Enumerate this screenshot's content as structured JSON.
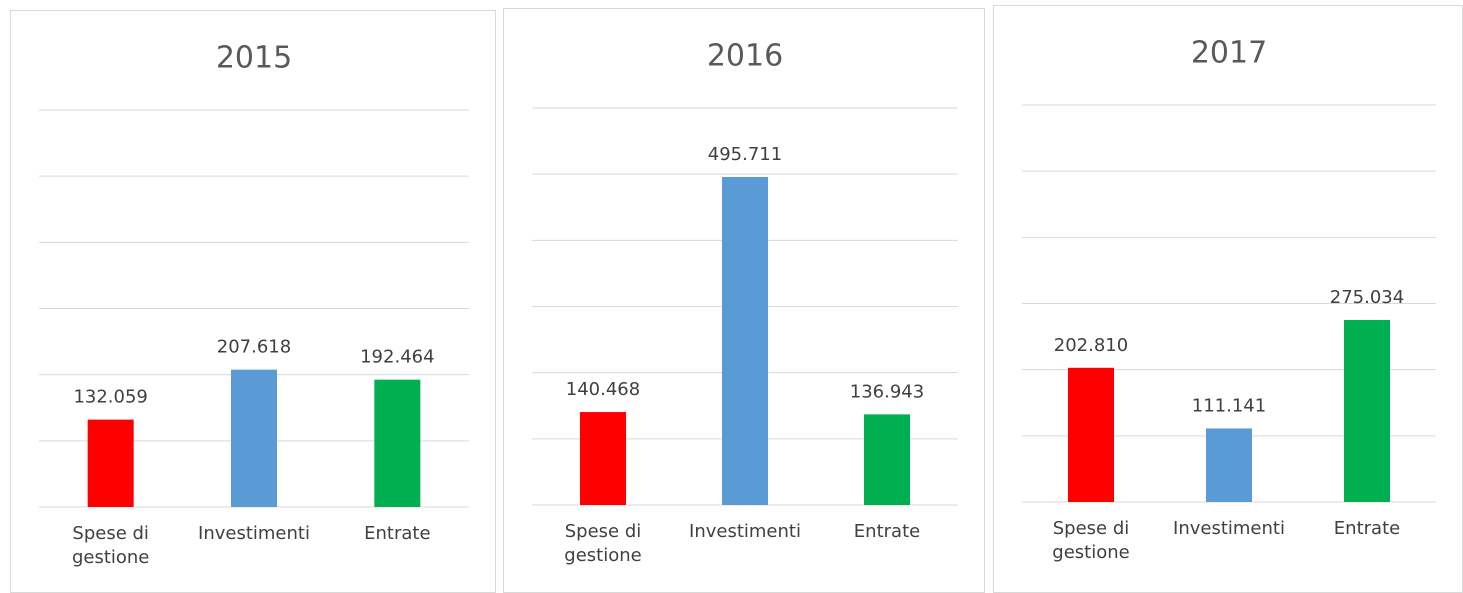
{
  "chart_data": [
    {
      "type": "bar",
      "title": "2015",
      "categories": [
        "Spese di gestione",
        "Investimenti",
        "Entrate"
      ],
      "values": [
        132059,
        207618,
        192464
      ],
      "value_labels": [
        "132.059",
        "207.618",
        "192.464"
      ],
      "colors": [
        "#ff0000",
        "#5b9bd5",
        "#00b050"
      ],
      "ylim": [
        0,
        600000
      ],
      "yticks": [
        0,
        100000,
        200000,
        300000,
        400000,
        500000,
        600000
      ],
      "grid": true
    },
    {
      "type": "bar",
      "title": "2016",
      "categories": [
        "Spese di gestione",
        "Investimenti",
        "Entrate"
      ],
      "values": [
        140468,
        495711,
        136943
      ],
      "value_labels": [
        "140.468",
        "495.711",
        "136.943"
      ],
      "colors": [
        "#ff0000",
        "#5b9bd5",
        "#00b050"
      ],
      "ylim": [
        0,
        600000
      ],
      "yticks": [
        0,
        100000,
        200000,
        300000,
        400000,
        500000,
        600000
      ],
      "grid": true
    },
    {
      "type": "bar",
      "title": "2017",
      "categories": [
        "Spese di gestione",
        "Investimenti",
        "Entrate"
      ],
      "values": [
        202810,
        111141,
        275034
      ],
      "value_labels": [
        "202.810",
        "111.141",
        "275.034"
      ],
      "colors": [
        "#ff0000",
        "#5b9bd5",
        "#00b050"
      ],
      "ylim": [
        0,
        600000
      ],
      "yticks": [
        0,
        100000,
        200000,
        300000,
        400000,
        500000,
        600000
      ],
      "grid": true
    }
  ]
}
